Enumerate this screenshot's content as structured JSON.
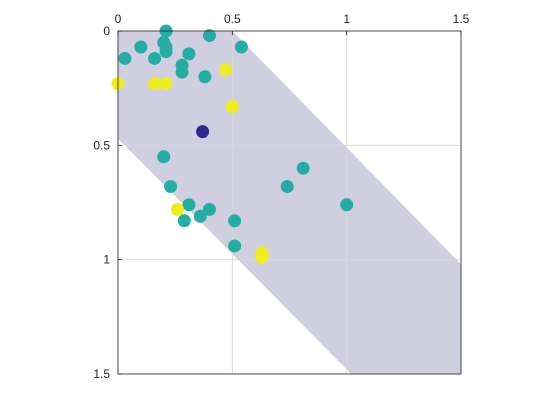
{
  "chart_data": {
    "type": "scatter",
    "title": "",
    "xlabel": "",
    "ylabel": "",
    "xlim": [
      0,
      1.5
    ],
    "ylim": [
      0,
      1.5
    ],
    "y_reversed": true,
    "x_axis_location": "top",
    "grid": true,
    "x_ticks": [
      {
        "value": 0,
        "label": "0"
      },
      {
        "value": 0.5,
        "label": "0.5"
      },
      {
        "value": 1,
        "label": "1"
      },
      {
        "value": 1.5,
        "label": "1.5"
      }
    ],
    "y_ticks": [
      {
        "value": 0,
        "label": "0"
      },
      {
        "value": 0.5,
        "label": "0.5"
      },
      {
        "value": 1,
        "label": "1"
      },
      {
        "value": 1.5,
        "label": "1.5"
      }
    ],
    "band": {
      "color": "#cfcfe0",
      "polygon": [
        [
          0,
          0
        ],
        [
          0.5,
          0
        ],
        [
          1.5,
          1.02
        ],
        [
          1.5,
          1.5
        ],
        [
          1.02,
          1.5
        ],
        [
          0,
          0.47
        ]
      ]
    },
    "colors": {
      "teal": "#24ada3",
      "yellow": "#eeee1a",
      "purple": "#2d2a8f"
    },
    "points": [
      {
        "x": 0.21,
        "y": 0.0,
        "c": "teal"
      },
      {
        "x": 0.2,
        "y": 0.05,
        "c": "teal"
      },
      {
        "x": 0.21,
        "y": 0.07,
        "c": "teal"
      },
      {
        "x": 0.21,
        "y": 0.09,
        "c": "teal"
      },
      {
        "x": 0.1,
        "y": 0.07,
        "c": "teal"
      },
      {
        "x": 0.4,
        "y": 0.02,
        "c": "teal"
      },
      {
        "x": 0.54,
        "y": 0.07,
        "c": "teal"
      },
      {
        "x": 0.31,
        "y": 0.1,
        "c": "teal"
      },
      {
        "x": 0.03,
        "y": 0.12,
        "c": "teal"
      },
      {
        "x": 0.16,
        "y": 0.12,
        "c": "teal"
      },
      {
        "x": 0.28,
        "y": 0.15,
        "c": "teal"
      },
      {
        "x": 0.28,
        "y": 0.18,
        "c": "teal"
      },
      {
        "x": 0.38,
        "y": 0.2,
        "c": "teal"
      },
      {
        "x": 0.47,
        "y": 0.17,
        "c": "yellow"
      },
      {
        "x": 0.0,
        "y": 0.23,
        "c": "yellow"
      },
      {
        "x": 0.16,
        "y": 0.23,
        "c": "yellow"
      },
      {
        "x": 0.21,
        "y": 0.23,
        "c": "yellow"
      },
      {
        "x": 0.5,
        "y": 0.33,
        "c": "yellow"
      },
      {
        "x": 0.37,
        "y": 0.44,
        "c": "purple"
      },
      {
        "x": 0.2,
        "y": 0.55,
        "c": "teal"
      },
      {
        "x": 0.81,
        "y": 0.6,
        "c": "teal"
      },
      {
        "x": 0.74,
        "y": 0.68,
        "c": "teal"
      },
      {
        "x": 0.23,
        "y": 0.68,
        "c": "teal"
      },
      {
        "x": 1.0,
        "y": 0.76,
        "c": "teal"
      },
      {
        "x": 0.31,
        "y": 0.76,
        "c": "teal"
      },
      {
        "x": 0.26,
        "y": 0.78,
        "c": "yellow"
      },
      {
        "x": 0.4,
        "y": 0.78,
        "c": "teal"
      },
      {
        "x": 0.36,
        "y": 0.81,
        "c": "teal"
      },
      {
        "x": 0.29,
        "y": 0.83,
        "c": "teal"
      },
      {
        "x": 0.51,
        "y": 0.83,
        "c": "teal"
      },
      {
        "x": 0.51,
        "y": 0.94,
        "c": "teal"
      },
      {
        "x": 0.63,
        "y": 0.97,
        "c": "yellow"
      },
      {
        "x": 0.63,
        "y": 0.99,
        "c": "yellow"
      }
    ]
  }
}
